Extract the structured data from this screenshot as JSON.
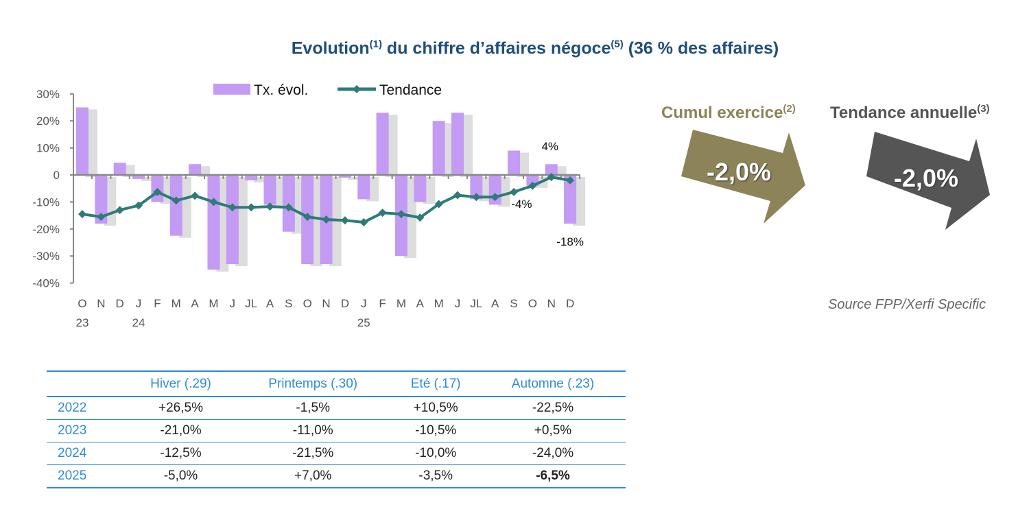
{
  "title": {
    "main": "Evolution",
    "sup1": "(1)",
    "mid": " du chiffre d’affaires négoce",
    "sup2": "(5)",
    "end": " (36 % des affaires)"
  },
  "chart_data": {
    "type": "bar",
    "title": "",
    "categories": [
      "O",
      "N",
      "D",
      "J",
      "F",
      "M",
      "A",
      "M",
      "J",
      "JL",
      "A",
      "S",
      "O",
      "N",
      "D",
      "J",
      "F",
      "M",
      "A",
      "M",
      "J",
      "JL",
      "A",
      "S",
      "O",
      "N",
      "D"
    ],
    "year_labels": {
      "0": "23",
      "3": "24",
      "15": "25"
    },
    "ylim": [
      -40,
      30
    ],
    "yticks": [
      "-40%",
      "-30%",
      "-20%",
      "-10%",
      "0",
      "10%",
      "20%",
      "30%"
    ],
    "ytick_values": [
      -40,
      -30,
      -20,
      -10,
      0,
      10,
      20,
      30
    ],
    "legend_position": "top",
    "series": [
      {
        "name": "Tx. évol.",
        "type": "bar",
        "color": "#c39bf5",
        "values": [
          25,
          -18,
          4.5,
          -1.5,
          -10,
          -22.5,
          4,
          -35,
          -33,
          -2,
          -11,
          -21,
          -33,
          -33,
          -1,
          -9,
          23,
          -30,
          -10,
          20,
          23,
          -9,
          -11,
          9,
          -4,
          4,
          -18
        ]
      },
      {
        "name": "Tendance",
        "type": "line",
        "color": "#2e7b78",
        "values": [
          -14.5,
          -15.5,
          -13,
          -11.3,
          -6.3,
          -9.5,
          -7.7,
          -10,
          -12,
          -12,
          -11.7,
          -12,
          -15.5,
          -16.5,
          -16.8,
          -17.5,
          -14,
          -14.5,
          -15.8,
          -10.8,
          -7.5,
          -8.2,
          -8.2,
          -6.3,
          -4,
          -0.8,
          -2
        ]
      }
    ],
    "data_labels": [
      {
        "index": 24,
        "text": "-4%"
      },
      {
        "index": 25,
        "text": "4%"
      },
      {
        "index": 26,
        "text": "-18%"
      }
    ]
  },
  "kpis": [
    {
      "label": "Cumul exercice",
      "sup": "(2)",
      "value": "-2,0%",
      "color": "#8c8458"
    },
    {
      "label": "Tendance annuelle",
      "sup": "(3)",
      "value": "-2,0%",
      "color": "#555555"
    }
  ],
  "source": "Source FPP/Xerfi Specific",
  "table": {
    "headers": [
      "",
      "Hiver (.29)",
      "Printemps (.30)",
      "Eté (.17)",
      "Automne (.23)"
    ],
    "rows": [
      [
        "2022",
        "+26,5%",
        "-1,5%",
        "+10,5%",
        "-22,5%"
      ],
      [
        "2023",
        "-21,0%",
        "-11,0%",
        "-10,5%",
        "+0,5%"
      ],
      [
        "2024",
        "-12,5%",
        "-21,5%",
        "-10,0%",
        "-24,0%"
      ],
      [
        "2025",
        "-5,0%",
        "+7,0%",
        "-3,5%",
        "-6,5%"
      ]
    ]
  }
}
